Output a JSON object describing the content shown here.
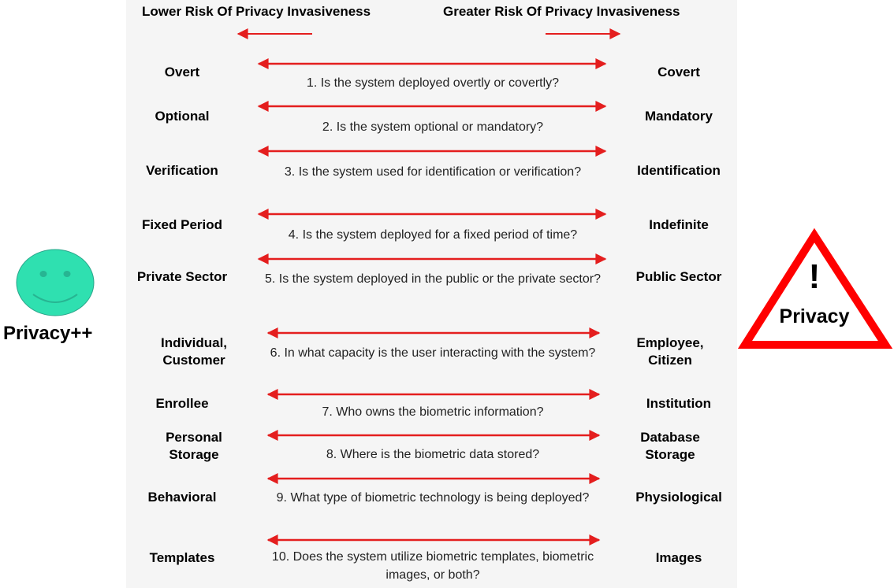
{
  "header": {
    "left": "Lower Risk Of Privacy Invasiveness",
    "right": "Greater Risk Of  Privacy Invasiveness"
  },
  "rows": [
    {
      "left": "Overt",
      "right": "Covert",
      "question": "1. Is the system deployed overtly or covertly?"
    },
    {
      "left": "Optional",
      "right": "Mandatory",
      "question": "2. Is the system optional or mandatory?"
    },
    {
      "left": "Verification",
      "right": "Identification",
      "question": "3. Is the system used for identification or verification?"
    },
    {
      "left": "Fixed Period",
      "right": "Indefinite",
      "question": "4. Is the system deployed for a fixed period of time?"
    },
    {
      "left": "Private Sector",
      "right": "Public Sector",
      "question": "5. Is the system deployed in the public or the private sector?"
    },
    {
      "left": "Individual, Customer",
      "right": "Employee, Citizen",
      "question": "6. In what capacity is the user interacting with the system?"
    },
    {
      "left": "Enrollee",
      "right": "Institution",
      "question": "7. Who owns the biometric information?"
    },
    {
      "left": "Personal Storage",
      "right": "Database Storage",
      "question": "8. Where is the biometric data stored?"
    },
    {
      "left": "Behavioral",
      "right": "Physiological",
      "question": "9. What type of biometric technology is being deployed?"
    },
    {
      "left": "Templates",
      "right": "Images",
      "question": "10. Does the system utilize biometric templates, biometric images, or both?"
    }
  ],
  "left_icon": {
    "icon": "smiley-face-icon",
    "label": "Privacy++",
    "color": "#2fe0b0"
  },
  "right_icon": {
    "icon": "warning-triangle-icon",
    "symbol": "!",
    "label": "Privacy",
    "color": "#ff0000"
  },
  "arrow_color": "#e41e1e"
}
